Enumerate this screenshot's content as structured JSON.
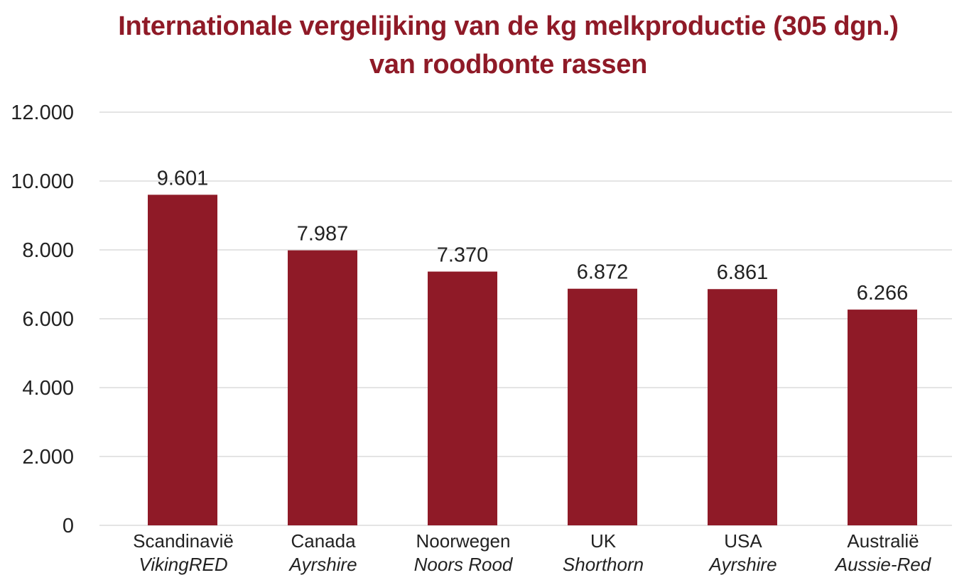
{
  "chart_data": {
    "type": "bar",
    "title_lines": [
      "Internationale vergelijking van de kg melkproductie (305 dgn.)",
      "van roodbonte rassen"
    ],
    "categories": [
      "Scandinavië",
      "Canada",
      "Noorwegen",
      "UK",
      "USA",
      "Australië"
    ],
    "subcategories": [
      "VikingRED",
      "Ayrshire",
      "Noors Rood",
      "Shorthorn",
      "Ayrshire",
      "Aussie-Red"
    ],
    "values": [
      9601,
      7987,
      7370,
      6872,
      6861,
      6266
    ],
    "value_labels": [
      "9.601",
      "7.987",
      "7.370",
      "6.872",
      "6.861",
      "6.266"
    ],
    "ylim": [
      0,
      12000
    ],
    "yticks": [
      0,
      2000,
      4000,
      6000,
      8000,
      10000,
      12000
    ],
    "ytick_labels": [
      "0",
      "2.000",
      "4.000",
      "6.000",
      "8.000",
      "10.000",
      "12.000"
    ],
    "xlabel": "",
    "ylabel": "",
    "grid": true,
    "legend": "none",
    "bar_color": "#8f1a27",
    "title_color": "#8f1a27",
    "grid_color": "#dcdcdc",
    "text_color": "#222222"
  }
}
